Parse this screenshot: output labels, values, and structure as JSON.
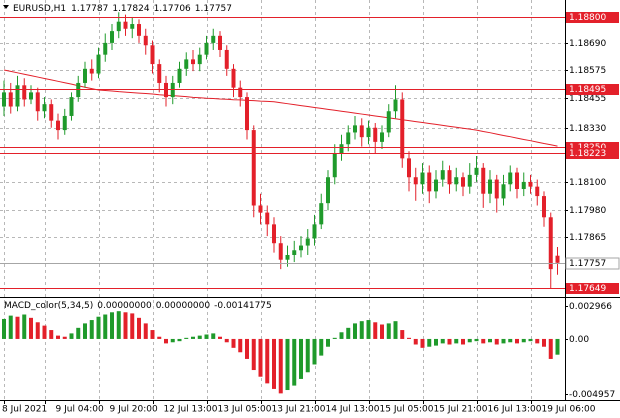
{
  "chart_data": [
    {
      "type": "candlestick",
      "title": "EURUSD,H1",
      "categories": [
        "8 Jul 2021",
        null,
        null,
        null,
        null,
        null,
        "9 Jul 04:00",
        null,
        null,
        null,
        null,
        null,
        null,
        null,
        "9 Jul 20:00",
        null,
        null,
        null,
        null,
        null,
        null,
        null,
        "12 Jul 13:00",
        null,
        null,
        null,
        null,
        null,
        null,
        null,
        "13 Jul 05:00",
        null,
        null,
        null,
        null,
        null,
        null,
        null,
        "13 Jul 21:00",
        null,
        null,
        null,
        null,
        null,
        null,
        null,
        "14 Jul 13:00",
        null,
        null,
        null,
        null,
        null,
        null,
        null,
        "15 Jul 05:00",
        null,
        null,
        null,
        null,
        null,
        null,
        null,
        "15 Jul 21:00",
        null,
        null,
        null,
        null,
        null,
        null,
        null,
        "16 Jul 13:00",
        null,
        null,
        null,
        null,
        null,
        null,
        null,
        "19 Jul 06:00",
        null,
        null,
        null,
        null
      ],
      "open": [
        1.1842,
        1.1848,
        1.1842,
        1.1851,
        1.1845,
        1.1848,
        1.184,
        1.1843,
        1.1836,
        1.1832,
        1.1838,
        1.1846,
        1.1852,
        1.1858,
        1.1856,
        1.1864,
        1.1869,
        1.1874,
        1.1878,
        1.1875,
        1.1877,
        1.1872,
        1.1868,
        1.186,
        1.1852,
        1.1846,
        1.1852,
        1.1858,
        1.1862,
        1.186,
        1.1864,
        1.1869,
        1.1872,
        1.1866,
        1.1858,
        1.185,
        1.1846,
        1.1832,
        1.18,
        1.1797,
        1.1792,
        1.1784,
        1.1777,
        1.1779,
        1.1781,
        1.1783,
        1.1786,
        1.1792,
        1.1801,
        1.1812,
        1.1822,
        1.1826,
        1.1831,
        1.1834,
        1.1829,
        1.1833,
        1.1827,
        1.1831,
        1.184,
        1.1845,
        1.182,
        1.1812,
        1.1809,
        1.1814,
        1.1806,
        1.1811,
        1.1815,
        1.1809,
        1.1812,
        1.1808,
        1.1813,
        1.1816,
        1.1805,
        1.1811,
        1.1803,
        1.1809,
        1.1814,
        1.1807,
        1.181,
        1.1808,
        1.1804,
        1.1795,
        1.17787
      ],
      "high": [
        1.1853,
        1.1852,
        1.1855,
        1.1854,
        1.1851,
        1.185,
        1.1846,
        1.1845,
        1.1839,
        1.1841,
        1.1848,
        1.1855,
        1.1861,
        1.1862,
        1.1867,
        1.1873,
        1.1877,
        1.1882,
        1.1881,
        1.188,
        1.1879,
        1.1875,
        1.187,
        1.1862,
        1.1855,
        1.1855,
        1.1861,
        1.1865,
        1.1866,
        1.1867,
        1.1872,
        1.1875,
        1.1874,
        1.1868,
        1.186,
        1.1853,
        1.1848,
        1.1834,
        1.1805,
        1.18,
        1.1795,
        1.1787,
        1.1783,
        1.1785,
        1.1787,
        1.179,
        1.1796,
        1.1805,
        1.1815,
        1.1826,
        1.183,
        1.1834,
        1.1838,
        1.1837,
        1.1836,
        1.1835,
        1.1834,
        1.1843,
        1.1851,
        1.1848,
        1.1823,
        1.1816,
        1.1818,
        1.1817,
        1.1815,
        1.1819,
        1.1817,
        1.1816,
        1.1814,
        1.1818,
        1.1821,
        1.1818,
        1.1815,
        1.1813,
        1.1813,
        1.1817,
        1.1816,
        1.1814,
        1.1813,
        1.1811,
        1.1806,
        1.1797,
        1.17824
      ],
      "low": [
        1.1838,
        1.1839,
        1.184,
        1.1842,
        1.1843,
        1.1836,
        1.1837,
        1.1833,
        1.1828,
        1.183,
        1.1836,
        1.1844,
        1.185,
        1.1853,
        1.1854,
        1.1861,
        1.1866,
        1.1871,
        1.1872,
        1.1871,
        1.1869,
        1.1864,
        1.1856,
        1.1848,
        1.1842,
        1.1843,
        1.185,
        1.1855,
        1.1857,
        1.1857,
        1.1862,
        1.1866,
        1.1863,
        1.1855,
        1.1846,
        1.1842,
        1.1828,
        1.1795,
        1.1792,
        1.1787,
        1.178,
        1.1773,
        1.1774,
        1.1776,
        1.1778,
        1.1779,
        1.1783,
        1.179,
        1.1798,
        1.1809,
        1.1819,
        1.1823,
        1.1828,
        1.1825,
        1.1826,
        1.1822,
        1.1824,
        1.1829,
        1.1837,
        1.1816,
        1.1806,
        1.1802,
        1.1805,
        1.1801,
        1.1803,
        1.1808,
        1.1805,
        1.1806,
        1.1804,
        1.1805,
        1.181,
        1.1799,
        1.1801,
        1.1797,
        1.18,
        1.1806,
        1.1803,
        1.1804,
        1.1805,
        1.18,
        1.1791,
        1.1765,
        1.17706
      ],
      "close": [
        1.1848,
        1.1842,
        1.1851,
        1.1845,
        1.1848,
        1.184,
        1.1843,
        1.1836,
        1.1832,
        1.1838,
        1.1846,
        1.1852,
        1.1858,
        1.1856,
        1.1864,
        1.1869,
        1.1874,
        1.1878,
        1.1875,
        1.1877,
        1.1872,
        1.1868,
        1.186,
        1.1852,
        1.1846,
        1.1852,
        1.1858,
        1.1862,
        1.186,
        1.1864,
        1.1869,
        1.1872,
        1.1866,
        1.1858,
        1.185,
        1.1846,
        1.1832,
        1.18,
        1.1797,
        1.1792,
        1.1784,
        1.1777,
        1.1779,
        1.1781,
        1.1783,
        1.1786,
        1.1792,
        1.1801,
        1.1812,
        1.1822,
        1.1826,
        1.1831,
        1.1834,
        1.1829,
        1.1833,
        1.1827,
        1.1831,
        1.184,
        1.1845,
        1.182,
        1.1812,
        1.1809,
        1.1814,
        1.1806,
        1.1811,
        1.1815,
        1.1809,
        1.1812,
        1.1808,
        1.1813,
        1.1816,
        1.1805,
        1.1811,
        1.1803,
        1.1809,
        1.1814,
        1.1807,
        1.181,
        1.1808,
        1.1804,
        1.1795,
        1.1773,
        1.17757
      ],
      "up_color": "#1f9a2b",
      "down_color": "#e3202a",
      "moving_average": {
        "color": "#e3202a",
        "values": [
          1.18575,
          1.18569,
          1.18563,
          1.18557,
          1.18551,
          1.18545,
          1.18539,
          1.18533,
          1.18527,
          1.18521,
          1.18515,
          1.18508,
          1.18502,
          1.18496,
          1.1849,
          1.18488,
          1.18486,
          1.18483,
          1.18481,
          1.18479,
          1.18477,
          1.18475,
          1.18473,
          1.1847,
          1.18468,
          1.18466,
          1.18464,
          1.18462,
          1.18459,
          1.18457,
          1.18455,
          1.18454,
          1.18452,
          1.18451,
          1.18449,
          1.18448,
          1.18446,
          1.18445,
          1.18443,
          1.18442,
          1.1844,
          1.18436,
          1.18432,
          1.18428,
          1.18424,
          1.1842,
          1.18416,
          1.18412,
          1.18408,
          1.18404,
          1.184,
          1.18396,
          1.18392,
          1.18388,
          1.18384,
          1.1838,
          1.18376,
          1.18372,
          1.18368,
          1.18364,
          1.1836,
          1.18356,
          1.18352,
          1.18348,
          1.18344,
          1.1834,
          1.18336,
          1.18332,
          1.18328,
          1.18324,
          1.1832,
          1.18314,
          1.18309,
          1.18303,
          1.18297,
          1.18292,
          1.18286,
          1.1828,
          1.18275,
          1.18269,
          1.18263,
          1.18258,
          1.18252
        ]
      },
      "ylim": [
        1.17616,
        1.18872
      ],
      "yticks": [
        {
          "value": 1.1869,
          "label": "1.18690"
        },
        1.18575,
        1.18455,
        {
          "value": 1.1833,
          "label": "1.18330"
        },
        {
          "value": 1.181,
          "label": "1.18100"
        },
        {
          "value": 1.1798,
          "label": "1.17980"
        },
        1.17865
      ],
      "grid": true,
      "levels": {
        "color": "#e3202a",
        "lines": [
          {
            "value": 1.188,
            "label": "1.18800"
          },
          1.18495,
          {
            "value": 1.1825,
            "label": "1.18250"
          },
          1.18223,
          1.17649
        ]
      },
      "current_price": {
        "value": 1.17757,
        "label": "1.17757",
        "color": "#a6a6a6"
      }
    },
    {
      "type": "macd",
      "title": "MACD_color(5,34,5)",
      "readout": [
        {
          "value": 0,
          "label": "0.00000000"
        },
        {
          "value": 0,
          "label": "0.00000000"
        }
      ],
      "values": [
        0.0018,
        0.0021,
        0.002,
        0.0022,
        0.0019,
        0.0015,
        0.0012,
        0.0008,
        0.0003,
        0.0002,
        0.0005,
        0.001,
        0.0014,
        0.0017,
        0.002,
        0.0022,
        0.0024,
        0.0025,
        0.0024,
        0.0023,
        0.0019,
        0.0014,
        0.0008,
        0.0002,
        -0.0004,
        -0.0003,
        -0.0002,
        0.0001,
        0.0002,
        0.0003,
        0.0004,
        0.0005,
        0.0002,
        -0.0003,
        -0.0008,
        -0.0012,
        -0.0018,
        -0.0028,
        -0.0034,
        -0.004,
        -0.0045,
        -0.0049,
        -0.0046,
        -0.0042,
        -0.0036,
        -0.003,
        -0.0023,
        -0.0015,
        -0.0007,
        0.0001,
        0.0006,
        0.001,
        0.0014,
        0.0016,
        0.0017,
        0.0015,
        0.0013,
        0.0014,
        0.0016,
        0.0008,
        0.0001,
        -0.0005,
        -0.0008,
        -0.0007,
        -0.0006,
        -0.0004,
        -0.0005,
        -0.0004,
        -0.0005,
        -0.0003,
        -0.0002,
        -0.0004,
        -0.0003,
        -0.0005,
        -0.0004,
        -0.0003,
        -0.0004,
        -0.0003,
        -0.0002,
        -0.0004,
        -0.0007,
        -0.0018,
        -0.00141775
      ],
      "up_color": "#1f9a2b",
      "down_color": "#e3202a",
      "ylim": [
        -0.004957,
        0.002966
      ],
      "yticks": [
        0.002966,
        {
          "value": 0,
          "label": "0.00"
        },
        -0.004957
      ]
    }
  ]
}
